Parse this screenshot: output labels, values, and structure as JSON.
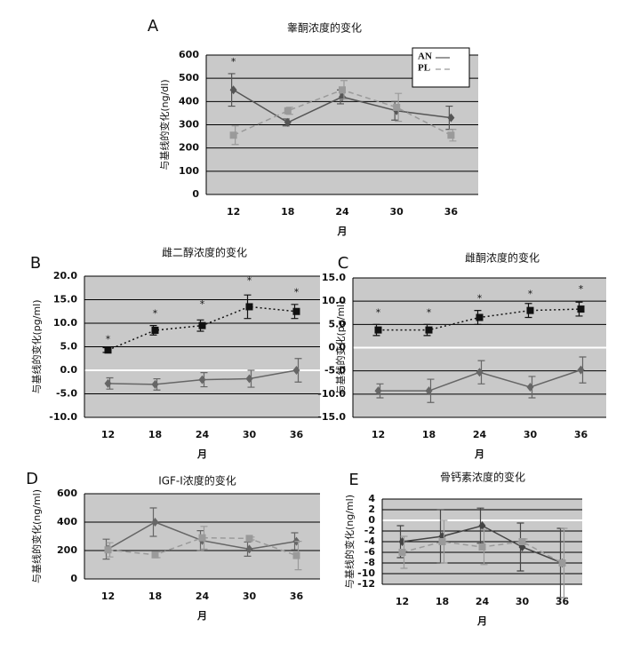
{
  "chart_data": [
    {
      "type": "line",
      "label": "A",
      "title": "睾酮浓度的变化",
      "ylabel": "与基线的变化(ng/dl)",
      "xlabel": "月",
      "categories": [
        "12",
        "18",
        "24",
        "30",
        "36"
      ],
      "ylim": [
        0,
        600
      ],
      "yticks": [
        0,
        100,
        200,
        300,
        400,
        500,
        600
      ],
      "grid": true,
      "legend": "upper right",
      "series": [
        {
          "name": "AN",
          "color": "#555555",
          "dash": "solid",
          "marker": "diamond",
          "values": [
            450,
            310,
            420,
            360,
            330
          ],
          "errors": [
            70,
            15,
            30,
            40,
            50
          ]
        },
        {
          "name": "PL",
          "color": "#9a9a9a",
          "dash": "dashed",
          "marker": "square",
          "values": [
            255,
            360,
            450,
            375,
            255
          ],
          "errors": [
            40,
            15,
            40,
            60,
            25
          ]
        }
      ],
      "annotations": [
        {
          "text": "*",
          "x": "12",
          "y": 570
        }
      ]
    },
    {
      "type": "line",
      "label": "B",
      "title": "雌二醇浓度的变化",
      "ylabel": "与基线的变化(pg/ml)",
      "xlabel": "月",
      "categories": [
        "12",
        "18",
        "24",
        "30",
        "36"
      ],
      "ylim": [
        -10,
        20
      ],
      "yticks": [
        {
          "value": -10,
          "label": "-10.0"
        },
        {
          "value": -5,
          "label": "-5.0"
        },
        {
          "value": 0,
          "label": "0.0"
        },
        {
          "value": 5,
          "label": "5.0"
        },
        {
          "value": 10,
          "label": "10.0"
        },
        {
          "value": 15,
          "label": "15.0"
        },
        {
          "value": 20,
          "label": "20.0"
        }
      ],
      "grid": true,
      "series": [
        {
          "color": "#111111",
          "dash": "dotted",
          "marker": "square",
          "values": [
            4.3,
            8.5,
            9.5,
            13.5,
            12.5
          ],
          "errors": [
            0.5,
            1,
            1.2,
            2.5,
            1.5
          ]
        },
        {
          "color": "#666666",
          "dash": "solid",
          "marker": "diamond",
          "values": [
            -2.8,
            -3,
            -2,
            -1.8,
            0
          ],
          "errors": [
            1.2,
            1.2,
            1.5,
            1.8,
            2.5
          ]
        }
      ],
      "annotations": [
        {
          "text": "*",
          "x": "12",
          "y": 6.5
        },
        {
          "text": "*",
          "x": "18",
          "y": 12
        },
        {
          "text": "*",
          "x": "24",
          "y": 14
        },
        {
          "text": "*",
          "x": "30",
          "y": 19
        },
        {
          "text": "*",
          "x": "36",
          "y": 16.5
        }
      ]
    },
    {
      "type": "line",
      "label": "C",
      "title": "雌酮浓度的变化",
      "ylabel": "与基线的变化(pg/ml)",
      "xlabel": "月",
      "categories": [
        "12",
        "18",
        "24",
        "30",
        "36"
      ],
      "ylim": [
        -15,
        15
      ],
      "yticks": [
        {
          "value": -15,
          "label": "-15.0"
        },
        {
          "value": -10,
          "label": "-10.0"
        },
        {
          "value": -5,
          "label": "-5.0"
        },
        {
          "value": 0,
          "label": "0.0"
        },
        {
          "value": 5,
          "label": "5.0"
        },
        {
          "value": 10,
          "label": "10.0"
        },
        {
          "value": 15,
          "label": "15.0"
        }
      ],
      "grid": true,
      "series": [
        {
          "color": "#111111",
          "dash": "dotted",
          "marker": "square",
          "values": [
            3.8,
            3.8,
            6.5,
            8,
            8.3
          ],
          "errors": [
            1.2,
            1.2,
            1.5,
            1.5,
            1.5
          ]
        },
        {
          "color": "#666666",
          "dash": "solid",
          "marker": "diamond",
          "values": [
            -9.3,
            -9.3,
            -5.3,
            -8.5,
            -4.8
          ],
          "errors": [
            1.5,
            2.5,
            2.5,
            2.3,
            2.8
          ]
        }
      ],
      "annotations": [
        {
          "text": "*",
          "x": "12",
          "y": 7.5
        },
        {
          "text": "*",
          "x": "18",
          "y": 7.5
        },
        {
          "text": "*",
          "x": "24",
          "y": 10.5
        },
        {
          "text": "*",
          "x": "30",
          "y": 11.5
        },
        {
          "text": "*",
          "x": "36",
          "y": 12.5
        }
      ]
    },
    {
      "type": "line",
      "label": "D",
      "title": "IGF-I浓度的变化",
      "ylabel": "与基线的变化(ng/ml)",
      "xlabel": "月",
      "categories": [
        "12",
        "18",
        "24",
        "30",
        "36"
      ],
      "ylim": [
        0,
        600
      ],
      "yticks": [
        0,
        200,
        400,
        600
      ],
      "grid": true,
      "series": [
        {
          "color": "#666666",
          "dash": "solid",
          "marker": "diamond",
          "values": [
            210,
            400,
            270,
            210,
            265
          ],
          "errors": [
            70,
            100,
            70,
            50,
            60
          ]
        },
        {
          "color": "#9a9a9a",
          "dash": "dashed",
          "marker": "square",
          "values": [
            205,
            170,
            290,
            285,
            165
          ],
          "errors": [
            50,
            20,
            80,
            10,
            100
          ]
        }
      ]
    },
    {
      "type": "line",
      "label": "E",
      "title": "骨钙素浓度的变化",
      "ylabel": "与基线的变化(ng/ml)",
      "xlabel": "月",
      "categories": [
        "12",
        "18",
        "24",
        "30",
        "36"
      ],
      "ylim": [
        -12,
        4
      ],
      "yticks": [
        -12,
        -10,
        -8,
        -6,
        -4,
        -2,
        0,
        2,
        4
      ],
      "grid": true,
      "series": [
        {
          "color": "#444444",
          "dash": "solid",
          "marker": "diamond",
          "values": [
            -4,
            -3,
            -1,
            -5,
            -8
          ],
          "errors": [
            3,
            5,
            3.3,
            4.5,
            6.5
          ]
        },
        {
          "color": "#9a9a9a",
          "dash": "dashed",
          "marker": "square",
          "values": [
            -6,
            -4,
            -5,
            -4,
            -8
          ],
          "errors": [
            3,
            4,
            3.3,
            0.5,
            6.5
          ]
        }
      ]
    }
  ]
}
